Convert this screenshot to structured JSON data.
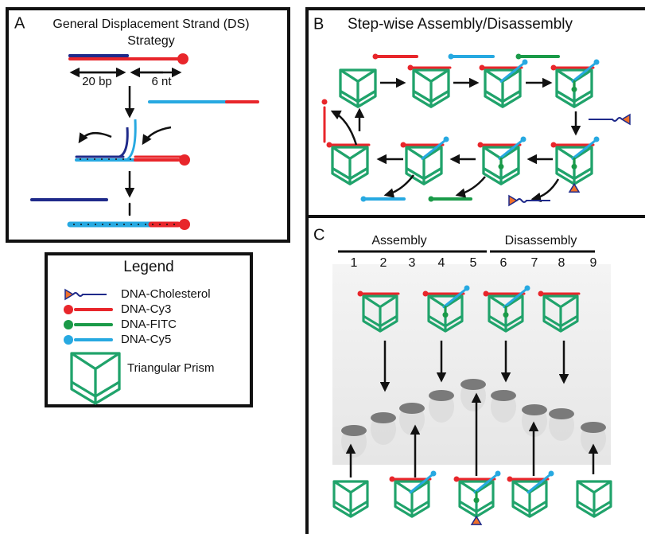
{
  "panel_a": {
    "label": "A",
    "title_lines": [
      "General Displacement Strand (DS)",
      "Strategy"
    ],
    "dimensions": [
      "20 bp",
      "6 nt"
    ]
  },
  "legend": {
    "title": "Legend",
    "items": [
      "DNA-Cholesterol",
      "DNA-Cy3",
      "DNA-FITC",
      "DNA-Cy5",
      "Triangular Prism"
    ]
  },
  "panel_b": {
    "label": "B",
    "title": "Step-wise Assembly/Disassembly"
  },
  "panel_c": {
    "label": "C",
    "groups": [
      "Assembly",
      "Disassembly"
    ],
    "lanes": [
      "1",
      "2",
      "3",
      "4",
      "5",
      "6",
      "7",
      "8",
      "9"
    ]
  }
}
